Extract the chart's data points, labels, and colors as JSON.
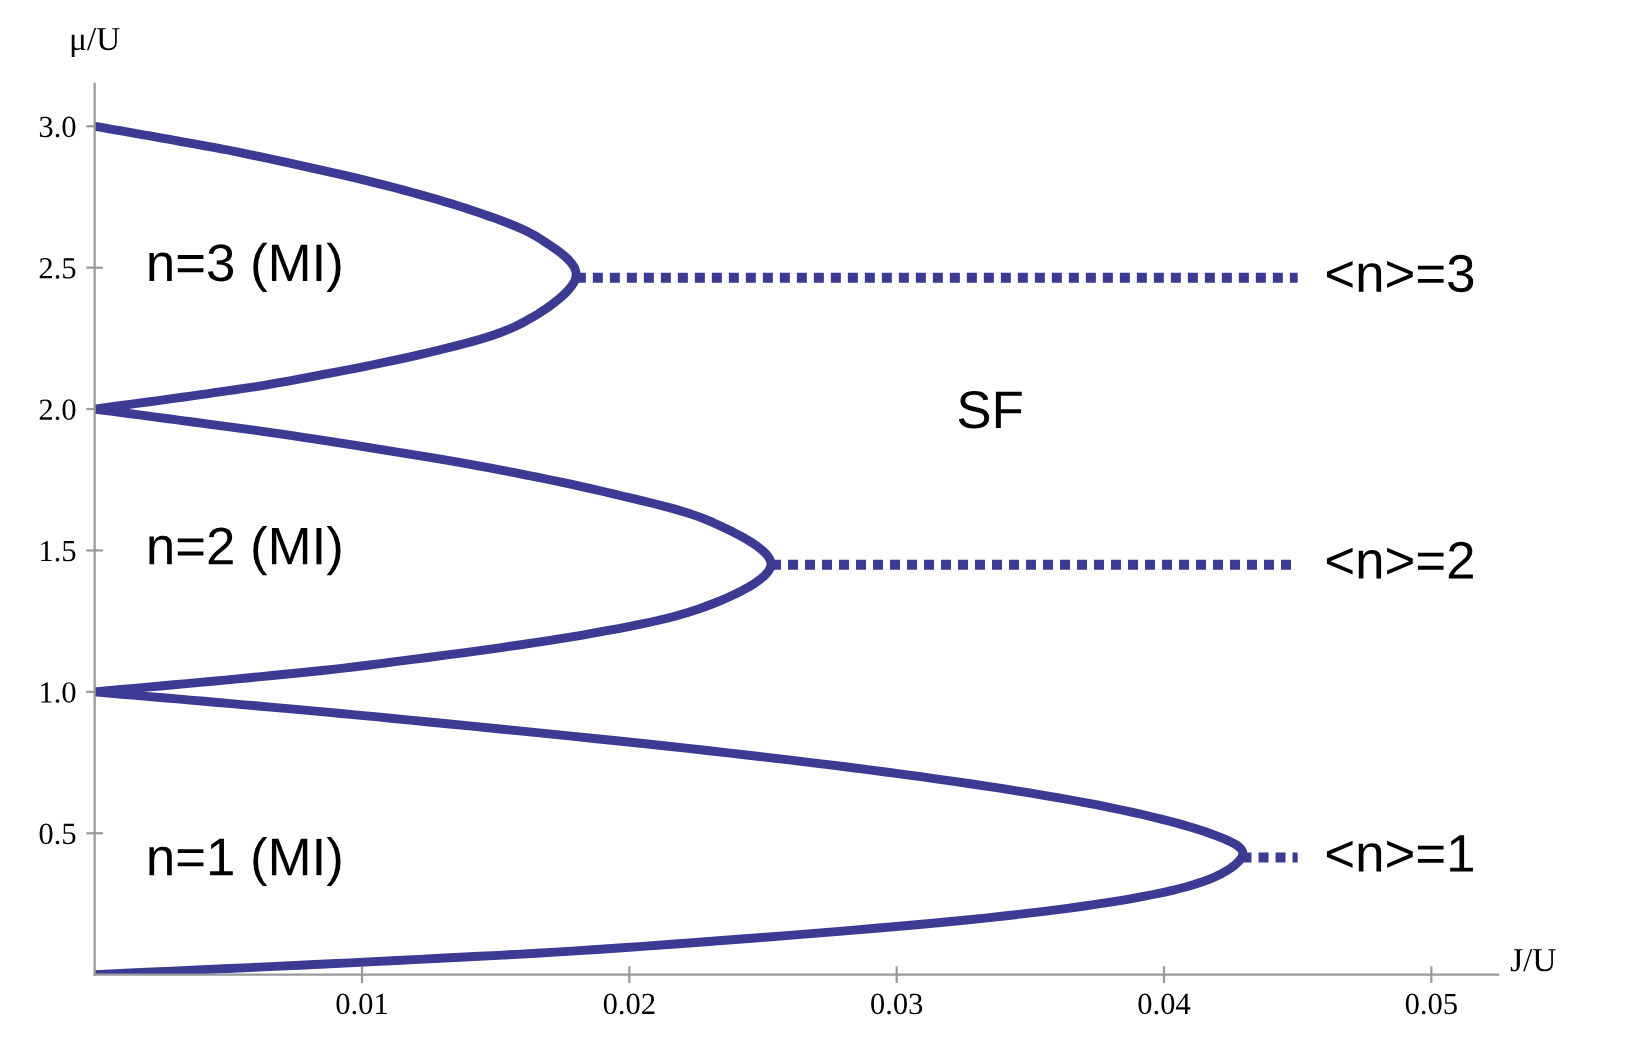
{
  "chart_data": {
    "type": "line",
    "xlabel": "J/U",
    "ylabel": "μ/U",
    "xlim": [
      0,
      0.0525
    ],
    "ylim": [
      0,
      3.15
    ],
    "xticks": [
      0.01,
      0.02,
      0.03,
      0.04,
      0.05
    ],
    "yticks": [
      0.5,
      {
        "value": 1,
        "label": "1.0"
      },
      1.5,
      {
        "value": 2,
        "label": "2.0"
      },
      2.5,
      {
        "value": 3,
        "label": "3.0"
      }
    ],
    "grid": false,
    "legend": false,
    "line_style": "solid",
    "marker": "none",
    "series": [
      {
        "color": "#3b3b94",
        "x": [
          0,
          0.0113,
          0.0205,
          0.0333,
          0.0404,
          0.0429,
          0.0417,
          0.0375,
          0.0309,
          0.0222,
          0.0118,
          0.0061,
          0
        ],
        "values": [
          0,
          0.05,
          0.1,
          0.2,
          0.3,
          0.414,
          0.5,
          0.6,
          0.7,
          0.8,
          0.9,
          0.95,
          1
        ]
      },
      {
        "color": "#3b3b94",
        "x": [
          0,
          0.0058,
          0.0107,
          0.0182,
          0.0228,
          0.0253,
          0.0231,
          0.0194,
          0.0143,
          0.0078,
          0.004,
          0
        ],
        "values": [
          1,
          1.05,
          1.1,
          1.2,
          1.3,
          1.449,
          1.6,
          1.7,
          1.8,
          1.9,
          1.95,
          2
        ]
      },
      {
        "color": "#3b3b94",
        "x": [
          0,
          0.0039,
          0.0073,
          0.0125,
          0.0159,
          0.018,
          0.0167,
          0.0142,
          0.0105,
          0.0058,
          0.003,
          0
        ],
        "values": [
          2,
          2.05,
          2.1,
          2.2,
          2.3,
          2.464,
          2.6,
          2.7,
          2.8,
          2.9,
          2.95,
          3
        ]
      },
      {
        "color": "#3b3b94",
        "line_style": "dotted",
        "x": [
          0.0429,
          0.045
        ],
        "values": [
          0.414,
          0.414
        ]
      },
      {
        "color": "#3b3b94",
        "line_style": "dotted",
        "x": [
          0.0253,
          0.045
        ],
        "values": [
          1.449,
          1.449
        ]
      },
      {
        "color": "#3b3b94",
        "line_style": "dotted",
        "x": [
          0.018,
          0.045
        ],
        "values": [
          2.464,
          2.464
        ]
      }
    ],
    "annotations": [
      "n=3 (MI)",
      "n=2 (MI)",
      "n=1 (MI)",
      "SF",
      "<n>=3",
      "<n>=2",
      "<n>=1"
    ]
  }
}
